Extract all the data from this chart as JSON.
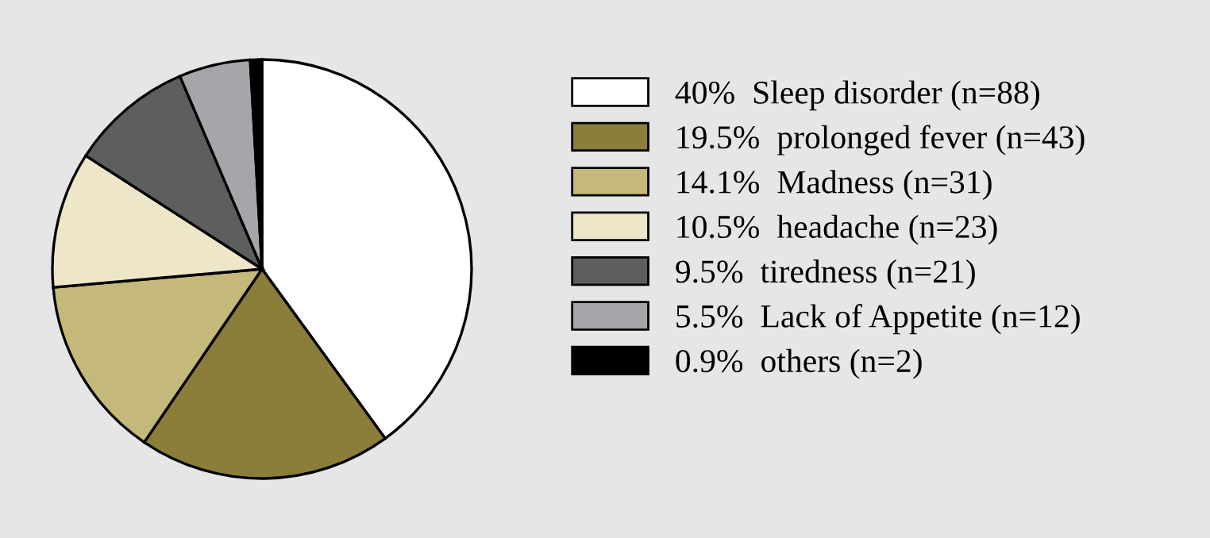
{
  "chart_data": {
    "type": "pie",
    "categories": [
      "40%  Sleep disorder (n=88)",
      "19.5%  prolonged fever (n=43)",
      "14.1%  Madness (n=31)",
      "10.5%  headache (n=23)",
      "9.5%  tiredness (n=21)",
      "5.5%  Lack of Appetite (n=12)",
      "0.9%  others (n=2)"
    ],
    "values": [
      40,
      19.5,
      14.1,
      10.5,
      9.5,
      5.5,
      0.9
    ],
    "colors": [
      "#ffffff",
      "#8b7d3a",
      "#c4b87a",
      "#ede6c8",
      "#5e5e5e",
      "#a6a5aa",
      "#000000"
    ],
    "legend": "right"
  }
}
